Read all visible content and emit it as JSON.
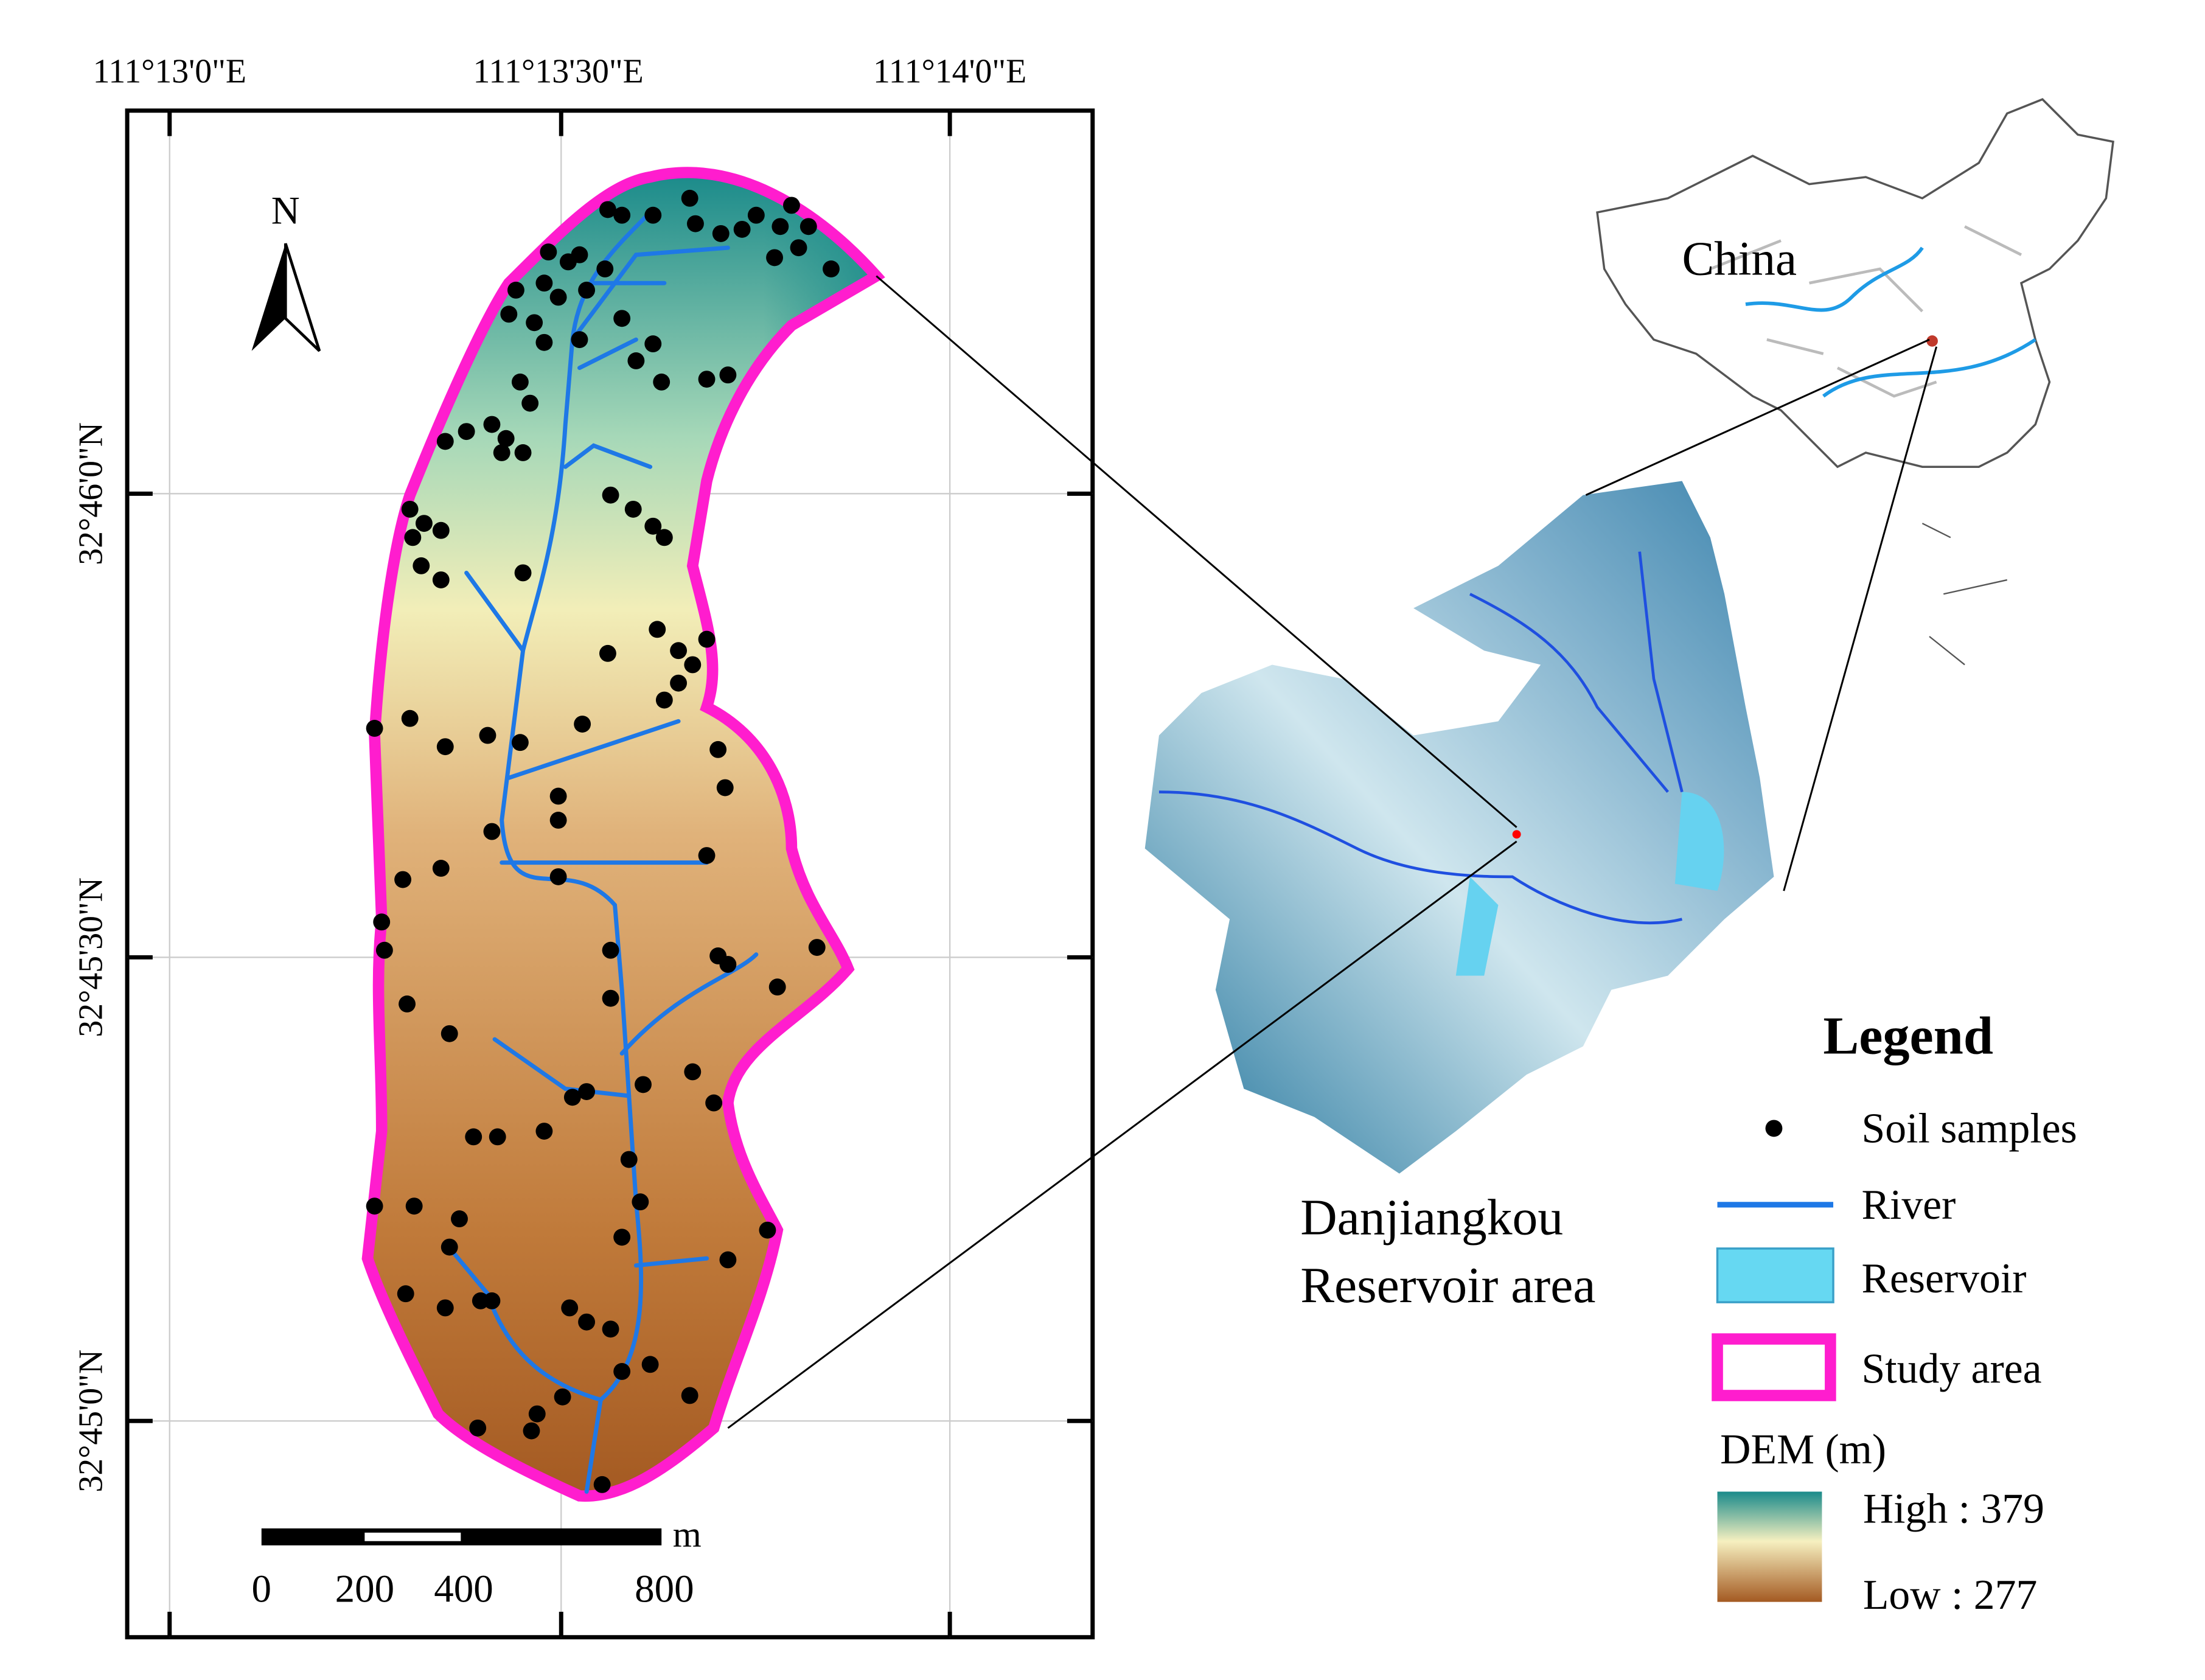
{
  "map": {
    "longitude_labels": [
      "111°13'0\"E",
      "111°13'30\"E",
      "111°14'0\"E"
    ],
    "latitude_labels": [
      "32°46'0\"N",
      "32°45'30\"N",
      "32°45'0\"N"
    ],
    "north_arrow": "N",
    "scale_bar": {
      "labels": [
        "0",
        "200",
        "400",
        "800"
      ],
      "unit": "m"
    },
    "inset_label": "China",
    "region_label": [
      "Danjiangkou",
      "Reservoir area"
    ],
    "legend": {
      "title": "Legend",
      "items": [
        "Soil samples",
        "River",
        "Reservoir",
        "Study area"
      ],
      "dem_title": "DEM (m)",
      "dem_high": "High : 379",
      "dem_low": "Low : 277"
    }
  }
}
